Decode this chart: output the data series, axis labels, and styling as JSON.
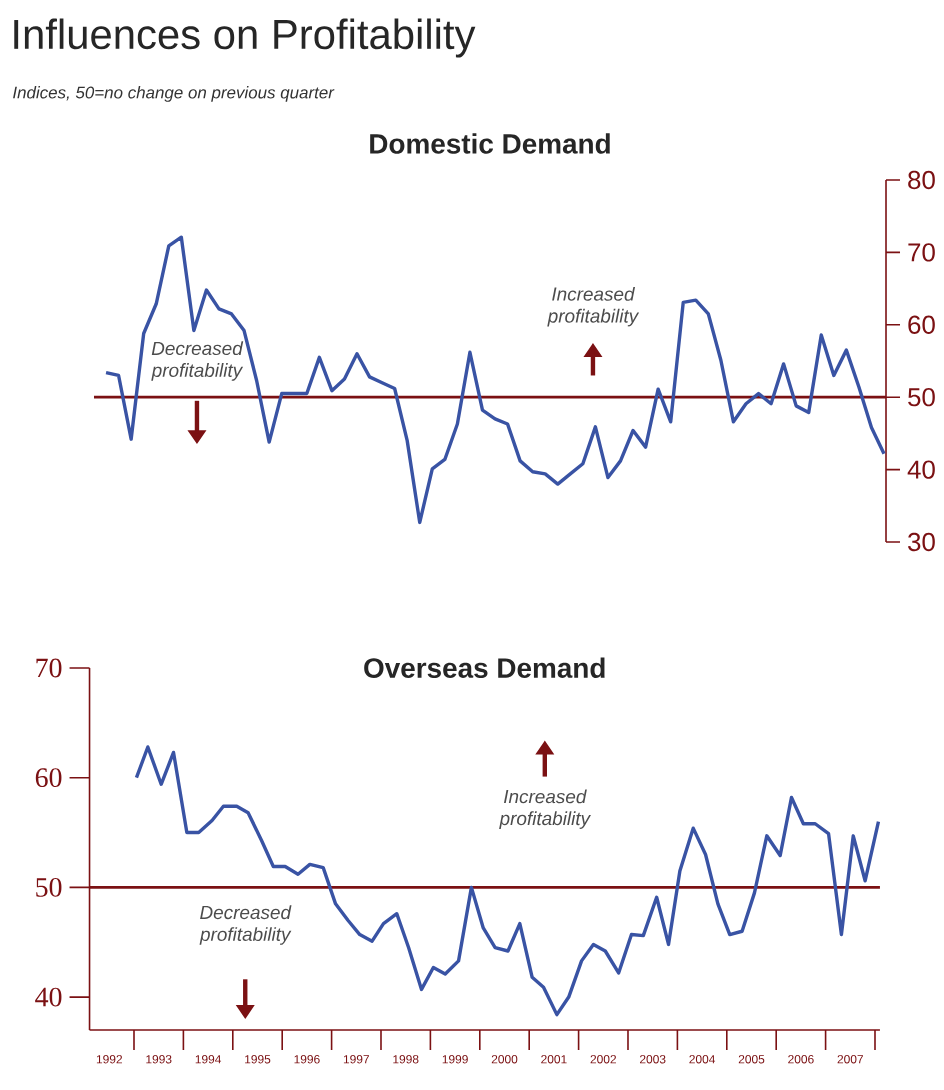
{
  "chart_data": [
    {
      "type": "other",
      "title": "Influences on Profitability",
      "subtitle": "Indices, 50=no change on previous quarter"
    },
    {
      "type": "line",
      "title": "Domestic Demand",
      "categories": [
        null,
        null,
        null,
        null,
        null,
        null,
        null,
        null,
        null,
        null,
        null,
        null,
        null,
        null,
        null,
        null,
        null,
        null,
        null,
        null,
        null,
        null,
        null,
        null,
        null,
        null,
        null,
        null,
        null,
        null,
        null,
        null,
        null,
        null,
        null,
        null,
        null,
        null,
        null,
        null,
        null,
        null,
        null,
        null,
        null,
        null,
        null,
        null,
        null,
        null,
        null,
        null,
        null,
        null,
        null,
        null,
        null,
        null,
        null,
        null,
        null,
        null,
        null
      ],
      "series": [
        {
          "color": "#3953a4",
          "values": [
            53.4,
            53.0,
            44.2,
            58.8,
            62.9,
            70.9,
            72.1,
            59.2,
            64.8,
            62.2,
            61.5,
            59.2,
            52.3,
            43.8,
            50.5,
            50.5,
            50.5,
            55.5,
            50.9,
            52.5,
            56.0,
            52.8,
            52.0,
            51.2,
            44.0,
            32.7,
            40.1,
            41.4,
            46.3,
            56.2,
            48.2,
            47.0,
            46.3,
            41.2,
            39.7,
            39.4,
            38.0,
            39.4,
            40.8,
            45.9,
            38.9,
            41.2,
            45.4,
            43.1,
            51.1,
            46.6,
            63.1,
            63.4,
            61.5,
            55.1,
            46.6,
            49.1,
            50.5,
            49.1,
            54.6,
            48.8,
            47.9,
            58.6,
            53.0,
            56.5,
            51.4,
            45.8,
            42.2
          ]
        }
      ],
      "ylim": [
        30,
        80
      ],
      "yticks": [
        30,
        40,
        50,
        60,
        70,
        80
      ],
      "tick_labels": "y",
      "ref_lines": [
        {
          "axis": "y",
          "value": 50,
          "color": "#7b1113"
        }
      ],
      "annotations": [
        "Increased profitability",
        "Decreased profitability"
      ]
    },
    {
      "type": "line",
      "title": "Overseas Demand",
      "x": [
        1993.05,
        1993.28,
        1993.55,
        1993.8,
        1994.07,
        1994.31,
        1994.58,
        1994.81,
        1995.08,
        1995.31,
        1995.58,
        1995.82,
        1996.06,
        1996.32,
        1996.56,
        1996.83,
        1997.08,
        1997.33,
        1997.57,
        1997.82,
        1998.05,
        1998.32,
        1998.56,
        1998.82,
        1999.06,
        1999.3,
        1999.57,
        1999.83,
        2000.07,
        2000.31,
        2000.57,
        2000.81,
        2001.06,
        2001.29,
        2001.56,
        2001.8,
        2002.06,
        2002.3,
        2002.54,
        2002.81,
        2003.07,
        2003.31,
        2003.58,
        2003.82,
        2004.05,
        2004.32,
        2004.57,
        2004.82,
        2005.06,
        2005.31,
        2005.56,
        2005.81,
        2006.08,
        2006.31,
        2006.55,
        2006.79,
        2007.06,
        2007.32,
        2007.56,
        2007.8,
        2008.07
      ],
      "series": [
        {
          "color": "#3953a4",
          "values": [
            60.0,
            62.8,
            59.4,
            62.3,
            55.0,
            55.0,
            56.1,
            57.4,
            57.4,
            56.8,
            54.3,
            51.9,
            51.9,
            51.2,
            52.1,
            51.8,
            48.5,
            47.0,
            45.7,
            45.1,
            46.7,
            47.6,
            44.5,
            40.7,
            42.7,
            42.1,
            43.3,
            50.0,
            46.3,
            44.5,
            44.2,
            46.7,
            41.8,
            40.9,
            38.4,
            40.0,
            43.3,
            44.8,
            44.2,
            42.2,
            45.7,
            45.6,
            49.1,
            44.8,
            51.5,
            55.4,
            53.0,
            48.5,
            45.7,
            46.0,
            49.5,
            54.7,
            52.9,
            58.2,
            55.8,
            55.8,
            54.9,
            45.7,
            54.7,
            50.6,
            56.0
          ]
        }
      ],
      "xlim": [
        1992.1,
        2008.1
      ],
      "ylim": [
        37,
        70
      ],
      "yticks": [
        40,
        50,
        60,
        70
      ],
      "xticks": [
        {
          "value": 1992.5,
          "label": "1992"
        },
        {
          "value": 1993.5,
          "label": "1993"
        },
        {
          "value": 1994.5,
          "label": "1994"
        },
        {
          "value": 1995.5,
          "label": "1995"
        },
        {
          "value": 1996.5,
          "label": "1996"
        },
        {
          "value": 1997.5,
          "label": "1997"
        },
        {
          "value": 1998.5,
          "label": "1998"
        },
        {
          "value": 1999.5,
          "label": "1999"
        },
        {
          "value": 2000.5,
          "label": "2000"
        },
        {
          "value": 2001.5,
          "label": "2001"
        },
        {
          "value": 2002.5,
          "label": "2002"
        },
        {
          "value": 2003.5,
          "label": "2003"
        },
        {
          "value": 2004.5,
          "label": "2004"
        },
        {
          "value": 2005.5,
          "label": "2005"
        },
        {
          "value": 2006.5,
          "label": "2006"
        },
        {
          "value": 2007.5,
          "label": "2007"
        },
        {
          "value": 1993,
          "label": null
        },
        {
          "value": 1994,
          "label": null
        },
        {
          "value": 1995,
          "label": null
        },
        {
          "value": 1996,
          "label": null
        },
        {
          "value": 1997,
          "label": null
        },
        {
          "value": 1998,
          "label": null
        },
        {
          "value": 1999,
          "label": null
        },
        {
          "value": 2000,
          "label": null
        },
        {
          "value": 2001,
          "label": null
        },
        {
          "value": 2002,
          "label": null
        },
        {
          "value": 2003,
          "label": null
        },
        {
          "value": 2004,
          "label": null
        },
        {
          "value": 2005,
          "label": null
        },
        {
          "value": 2006,
          "label": null
        },
        {
          "value": 2007,
          "label": null
        },
        {
          "value": 2008,
          "label": null
        }
      ],
      "ref_lines": [
        {
          "axis": "y",
          "value": 50,
          "color": "#7b1113"
        }
      ],
      "annotations": [
        "Increased profitability",
        "Decreased profitability"
      ]
    }
  ]
}
